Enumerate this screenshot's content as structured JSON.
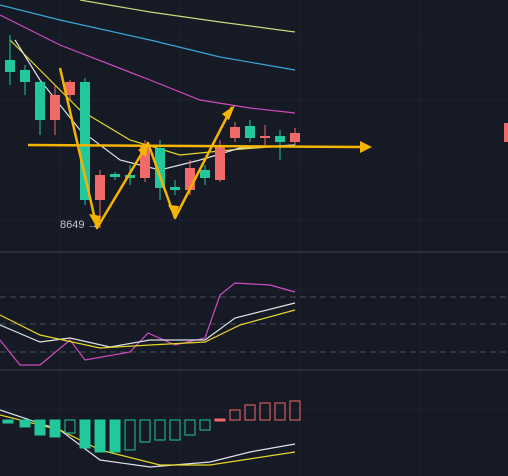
{
  "annotation": {
    "label": "8649 →"
  }
}
